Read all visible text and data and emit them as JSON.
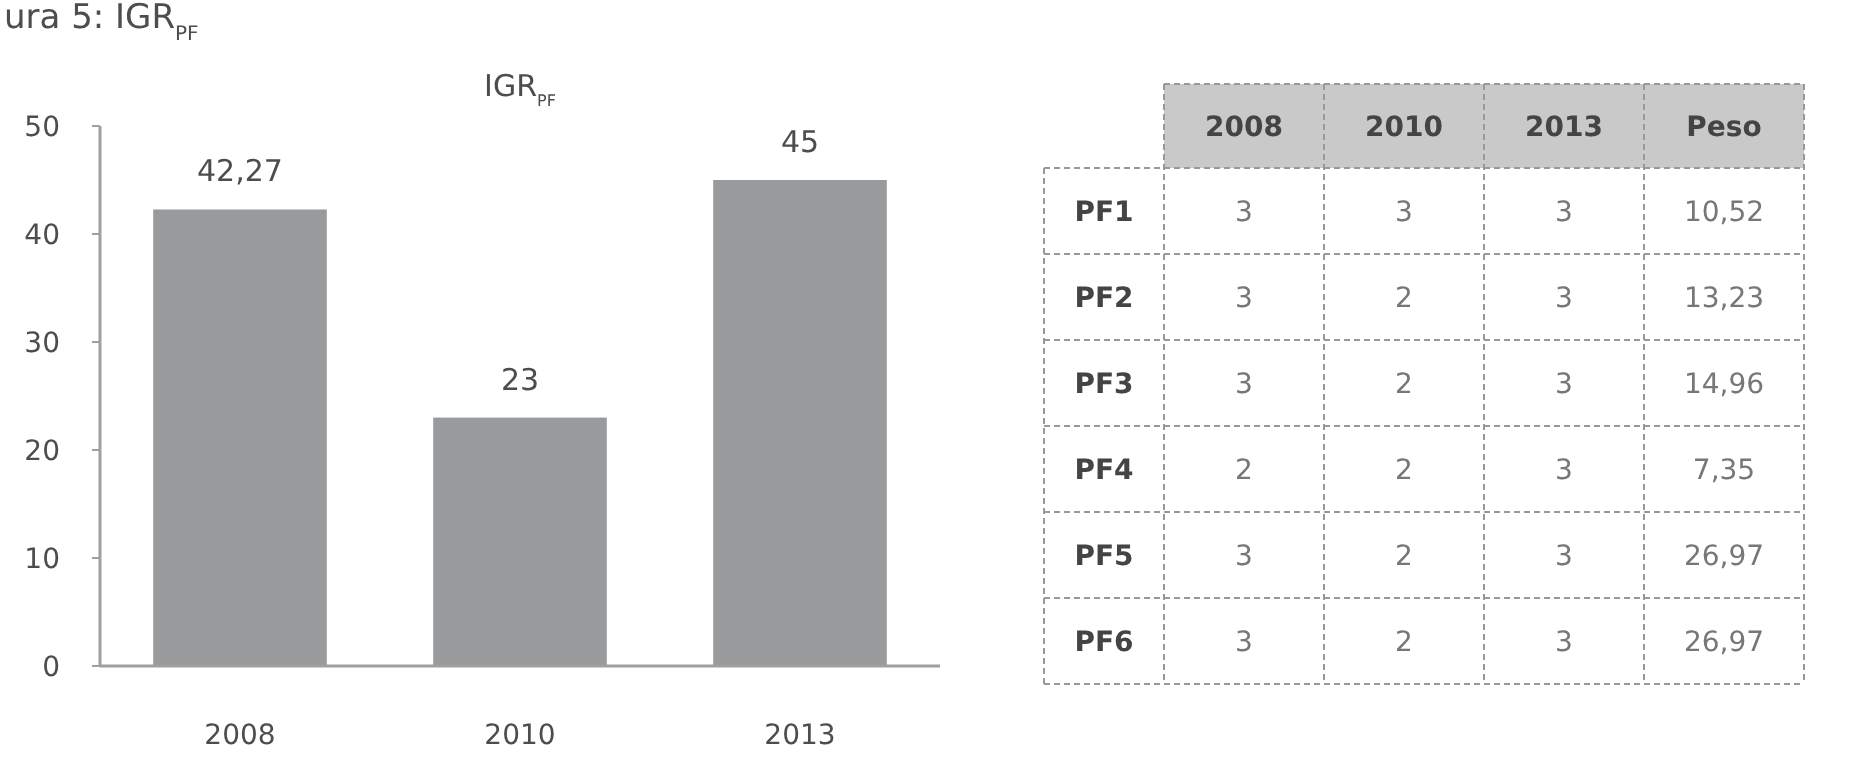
{
  "chart_data": [
    {
      "type": "bar",
      "title": "IGR$_{PF}$",
      "annotations": [
        "ura 5: IGR$_{PF}$"
      ],
      "categories": [
        "2008",
        "2010",
        "2013"
      ],
      "values": [
        42.27,
        23,
        45
      ],
      "color": "#999a9b",
      "value_labels": [
        "42,27",
        "23",
        "45"
      ],
      "ylim": [
        0,
        50
      ],
      "yticks": [
        0,
        10,
        20,
        30,
        40,
        50
      ],
      "grid": false
    },
    {
      "type": "other",
      "categories": [
        "2008",
        "2010",
        "2013",
        "Peso"
      ],
      "y_categories": [
        "PF1",
        "PF2",
        "PF3",
        "PF4",
        "PF5",
        "PF6"
      ],
      "cell_labels": [
        [
          "3",
          "3",
          "3",
          "10,52"
        ],
        [
          "3",
          "2",
          "3",
          "13,23"
        ],
        [
          "3",
          "2",
          "3",
          "14,96"
        ],
        [
          "2",
          "2",
          "3",
          "7,35"
        ],
        [
          "3",
          "2",
          "3",
          "26,97"
        ],
        [
          "3",
          "2",
          "3",
          "26,97"
        ]
      ]
    }
  ]
}
